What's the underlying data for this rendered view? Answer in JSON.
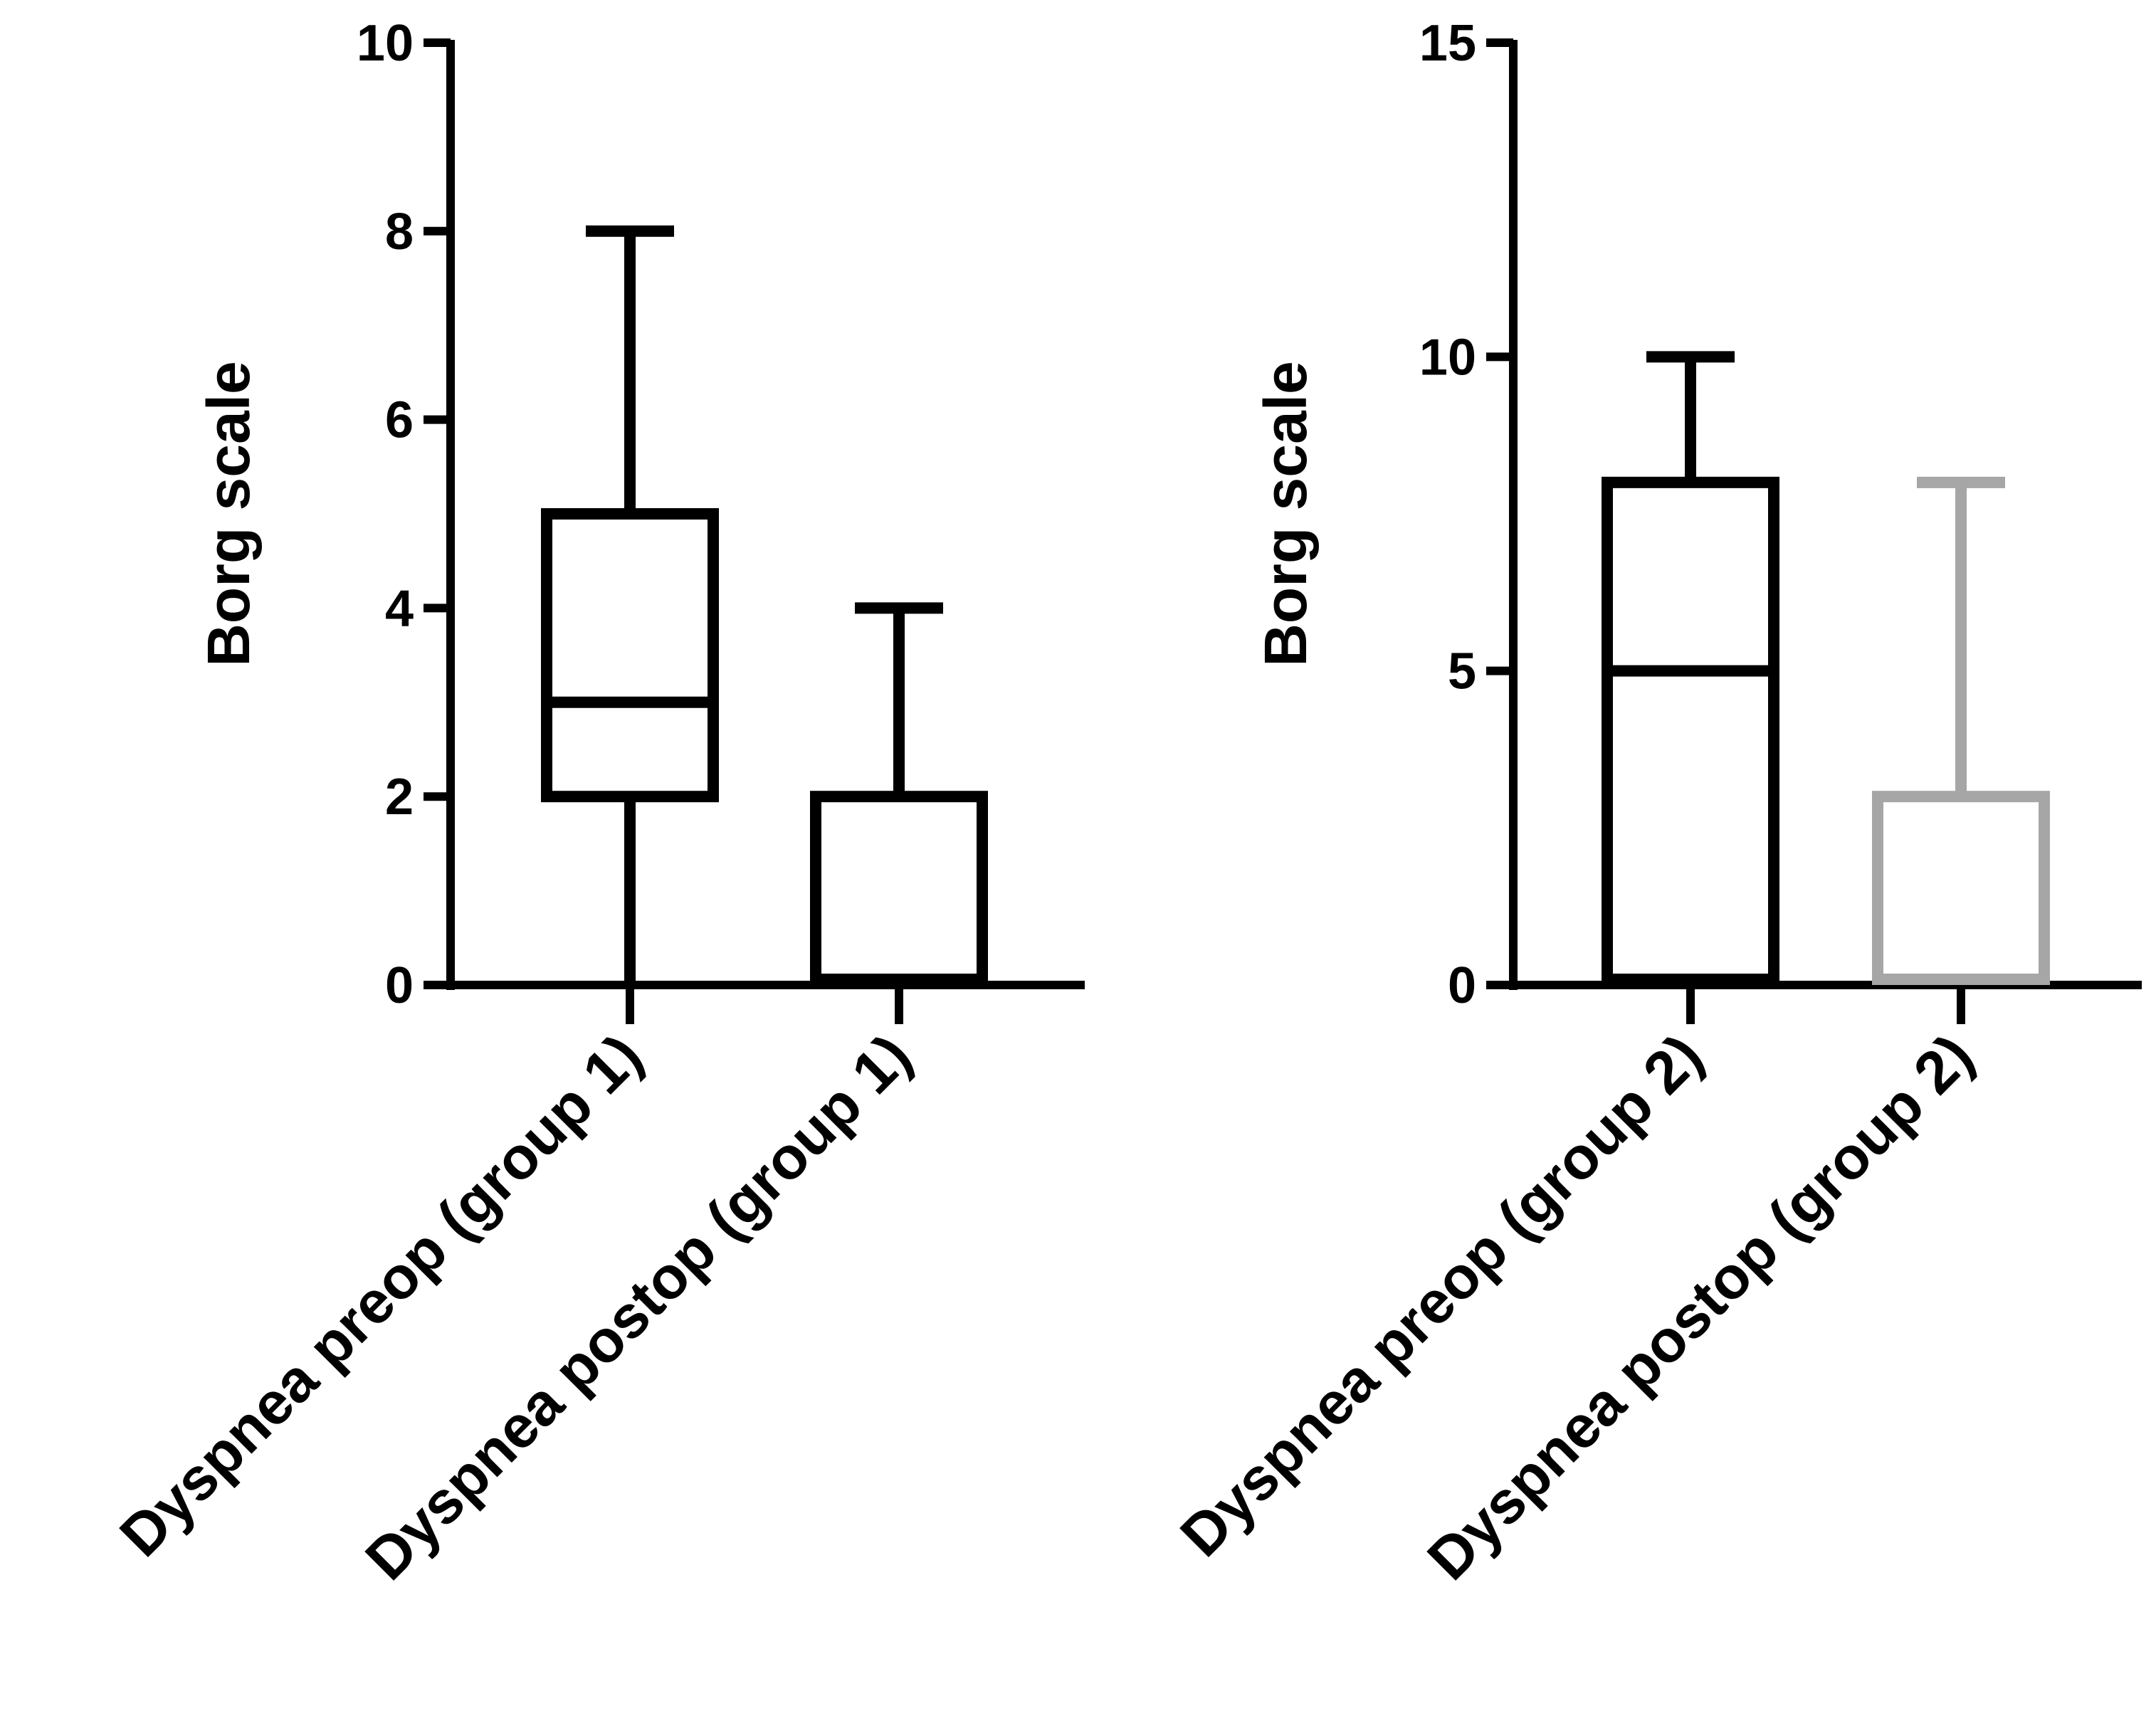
{
  "chart_data": [
    {
      "type": "box",
      "ylabel": "Borg scale",
      "ylim": [
        0,
        10
      ],
      "yticks": [
        0,
        2,
        4,
        6,
        8,
        10
      ],
      "categories": [
        "Dyspnea preop (group 1)",
        "Dyspnea postop (group 1)"
      ],
      "boxes": [
        {
          "category": "Dyspnea preop (group 1)",
          "min": 0,
          "q1": 2,
          "median": 3,
          "q3": 5,
          "max": 8,
          "color": "#000000"
        },
        {
          "category": "Dyspnea postop (group 1)",
          "min": 0,
          "q1": 0,
          "median": 0,
          "q3": 2,
          "max": 4,
          "color": "#000000"
        }
      ]
    },
    {
      "type": "box",
      "ylabel": "Borg scale",
      "ylim": [
        0,
        15
      ],
      "yticks": [
        0,
        5,
        10,
        15
      ],
      "categories": [
        "Dyspnea preop (group 2)",
        "Dyspnea postop (group 2)"
      ],
      "boxes": [
        {
          "category": "Dyspnea preop (group 2)",
          "min": 0,
          "q1": 0,
          "median": 5,
          "q3": 8,
          "max": 10,
          "color": "#000000"
        },
        {
          "category": "Dyspnea postop (group 2)",
          "min": 0,
          "q1": 0,
          "median": 0,
          "q3": 3,
          "max": 8,
          "color": "#a6a6a6"
        }
      ]
    }
  ]
}
